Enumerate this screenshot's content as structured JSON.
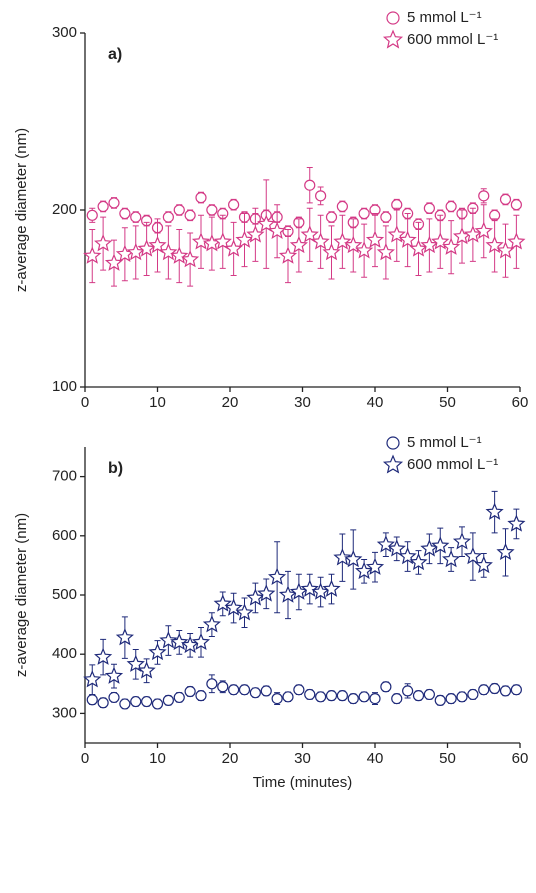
{
  "chart_data": [
    {
      "type": "scatter",
      "annotation": "a)",
      "ylabel": "z-average diameter (nm)",
      "xlim": [
        0,
        60
      ],
      "xticks": [
        0,
        10,
        20,
        30,
        40,
        50,
        60
      ],
      "ylim": [
        100,
        300
      ],
      "yticks": [
        100,
        200,
        300
      ],
      "x": [
        1,
        2.5,
        4,
        5.5,
        7,
        8.5,
        10,
        11.5,
        13,
        14.5,
        16,
        17.5,
        19,
        20.5,
        22,
        23.5,
        25,
        26.5,
        28,
        29.5,
        31,
        32.5,
        34,
        35.5,
        37,
        38.5,
        40,
        41.5,
        43,
        44.5,
        46,
        47.5,
        49,
        50.5,
        52,
        53.5,
        55,
        56.5,
        58,
        59.5
      ],
      "series": [
        {
          "name": "5 mmol L⁻¹",
          "color": "#d43a86",
          "marker": "circle",
          "values": [
            197,
            202,
            204,
            198,
            196,
            194,
            190,
            196,
            200,
            197,
            207,
            200,
            198,
            203,
            196,
            195,
            197,
            196,
            188,
            193,
            214,
            208,
            196,
            202,
            193,
            198,
            200,
            196,
            203,
            198,
            192,
            201,
            197,
            202,
            198,
            201,
            208,
            197,
            206,
            203
          ],
          "errors": [
            4,
            3,
            3,
            3,
            3,
            3,
            3,
            3,
            3,
            3,
            3,
            3,
            3,
            3,
            3,
            3,
            3,
            3,
            3,
            3,
            10,
            5,
            3,
            3,
            3,
            3,
            3,
            3,
            3,
            3,
            3,
            3,
            3,
            3,
            3,
            3,
            4,
            3,
            3,
            3
          ]
        },
        {
          "name": "600 mmol L⁻¹",
          "color": "#d43a86",
          "marker": "star",
          "values": [
            174,
            181,
            170,
            175,
            176,
            178,
            180,
            176,
            174,
            172,
            182,
            181,
            182,
            178,
            183,
            186,
            192,
            188,
            174,
            180,
            186,
            182,
            176,
            182,
            180,
            177,
            183,
            176,
            186,
            183,
            178,
            180,
            182,
            179,
            185,
            186,
            188,
            180,
            177,
            182
          ],
          "errors": [
            15,
            15,
            13,
            15,
            15,
            15,
            15,
            15,
            15,
            15,
            15,
            15,
            15,
            15,
            15,
            15,
            25,
            15,
            15,
            15,
            15,
            15,
            15,
            15,
            15,
            15,
            15,
            15,
            15,
            15,
            15,
            15,
            15,
            15,
            15,
            15,
            15,
            15,
            15,
            15
          ]
        }
      ]
    },
    {
      "type": "scatter",
      "annotation": "b)",
      "ylabel": "z-average diameter (nm)",
      "xlabel": "Time (minutes)",
      "xlim": [
        0,
        60
      ],
      "xticks": [
        0,
        10,
        20,
        30,
        40,
        50,
        60
      ],
      "ylim": [
        250,
        750
      ],
      "yticks": [
        300,
        400,
        500,
        600,
        700
      ],
      "x": [
        1,
        2.5,
        4,
        5.5,
        7,
        8.5,
        10,
        11.5,
        13,
        14.5,
        16,
        17.5,
        19,
        20.5,
        22,
        23.5,
        25,
        26.5,
        28,
        29.5,
        31,
        32.5,
        34,
        35.5,
        37,
        38.5,
        40,
        41.5,
        43,
        44.5,
        46,
        47.5,
        49,
        50.5,
        52,
        53.5,
        55,
        56.5,
        58,
        59.5
      ],
      "series": [
        {
          "name": "5 mmol L⁻¹",
          "color": "#1f2a7a",
          "marker": "circle",
          "values": [
            323,
            318,
            327,
            316,
            320,
            320,
            316,
            322,
            327,
            337,
            330,
            350,
            345,
            340,
            340,
            335,
            338,
            325,
            328,
            340,
            332,
            328,
            330,
            330,
            325,
            328,
            325,
            345,
            325,
            338,
            330,
            332,
            322,
            325,
            328,
            332,
            340,
            342,
            338,
            340
          ],
          "errors": [
            8,
            8,
            8,
            8,
            8,
            8,
            8,
            8,
            8,
            8,
            8,
            15,
            10,
            8,
            8,
            8,
            8,
            10,
            8,
            8,
            8,
            8,
            8,
            8,
            8,
            8,
            10,
            8,
            8,
            12,
            8,
            8,
            8,
            8,
            8,
            8,
            8,
            8,
            8,
            8
          ]
        },
        {
          "name": "600 mmol L⁻¹",
          "color": "#1f2a7a",
          "marker": "star",
          "values": [
            357,
            395,
            363,
            428,
            383,
            372,
            403,
            423,
            420,
            415,
            420,
            450,
            485,
            478,
            470,
            495,
            502,
            530,
            500,
            505,
            510,
            505,
            510,
            563,
            560,
            540,
            547,
            585,
            578,
            565,
            555,
            578,
            583,
            560,
            590,
            565,
            550,
            640,
            572,
            620
          ],
          "errors": [
            25,
            30,
            20,
            35,
            25,
            20,
            20,
            25,
            20,
            20,
            25,
            20,
            20,
            25,
            25,
            25,
            25,
            60,
            40,
            30,
            25,
            25,
            25,
            40,
            50,
            20,
            25,
            20,
            20,
            25,
            20,
            25,
            30,
            20,
            25,
            40,
            20,
            35,
            40,
            25
          ]
        }
      ]
    }
  ]
}
